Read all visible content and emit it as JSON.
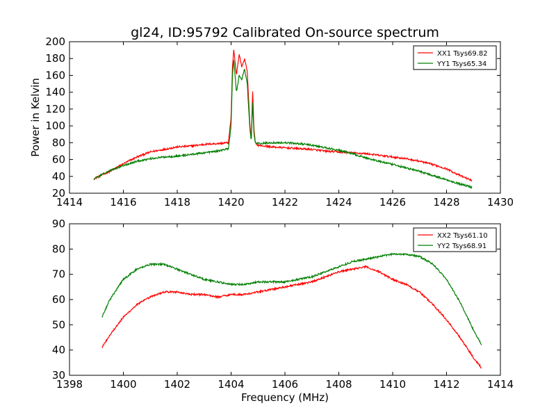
{
  "figure": {
    "title": "gl24, ID:95792 Calibrated On-source spectrum",
    "xlabel": "Frequency (MHz)",
    "colors": {
      "red": "#ff0000",
      "green": "#007f00"
    }
  },
  "chart_data": [
    {
      "type": "line",
      "title": "gl24, ID:95792 Calibrated On-source spectrum",
      "xlabel": "",
      "ylabel": "Power in Kelvin",
      "xlim": [
        1414,
        1430
      ],
      "ylim": [
        20,
        200
      ],
      "xticks": [
        1414,
        1416,
        1418,
        1420,
        1422,
        1424,
        1426,
        1428,
        1430
      ],
      "yticks": [
        20,
        40,
        60,
        80,
        100,
        120,
        140,
        160,
        180,
        200
      ],
      "legend": "top-right",
      "grid": false,
      "series": [
        {
          "name": "XX1 Tsys69.82",
          "color": "#ff0000",
          "x": [
            1414.9,
            1415.5,
            1416.0,
            1416.5,
            1417.0,
            1417.5,
            1418.0,
            1418.5,
            1419.0,
            1419.5,
            1419.9,
            1420.0,
            1420.05,
            1420.1,
            1420.2,
            1420.3,
            1420.4,
            1420.5,
            1420.6,
            1420.7,
            1420.75,
            1420.8,
            1420.85,
            1420.9,
            1421.0,
            1421.5,
            1422.0,
            1422.5,
            1423.0,
            1423.5,
            1424.0,
            1424.5,
            1425.0,
            1425.5,
            1426.0,
            1426.5,
            1427.0,
            1427.5,
            1428.0,
            1428.5,
            1428.95
          ],
          "y": [
            37,
            46,
            55,
            63,
            69,
            72,
            75,
            76,
            78,
            79,
            80,
            110,
            170,
            190,
            160,
            185,
            170,
            180,
            165,
            100,
            85,
            143,
            95,
            80,
            77,
            75,
            74,
            73,
            72,
            70,
            69,
            68,
            67,
            65,
            63,
            61,
            58,
            54,
            49,
            41,
            35
          ]
        },
        {
          "name": "YY1 Tsys65.34",
          "color": "#007f00",
          "x": [
            1414.9,
            1415.5,
            1416.0,
            1416.5,
            1417.0,
            1417.5,
            1418.0,
            1418.5,
            1419.0,
            1419.5,
            1419.9,
            1420.0,
            1420.05,
            1420.1,
            1420.2,
            1420.3,
            1420.4,
            1420.5,
            1420.6,
            1420.7,
            1420.75,
            1420.8,
            1420.85,
            1420.9,
            1421.0,
            1421.5,
            1422.0,
            1422.5,
            1423.0,
            1423.5,
            1424.0,
            1424.5,
            1425.0,
            1425.5,
            1426.0,
            1426.5,
            1427.0,
            1427.5,
            1428.0,
            1428.5,
            1428.95
          ],
          "y": [
            37,
            47,
            53,
            58,
            61,
            63,
            64,
            66,
            68,
            70,
            73,
            100,
            160,
            178,
            140,
            160,
            155,
            168,
            150,
            95,
            82,
            128,
            90,
            80,
            79,
            80,
            80,
            79,
            77,
            74,
            71,
            67,
            62,
            58,
            54,
            50,
            46,
            41,
            36,
            31,
            27
          ]
        }
      ]
    },
    {
      "type": "line",
      "title": "",
      "xlabel": "Frequency (MHz)",
      "ylabel": "",
      "xlim": [
        1398,
        1414
      ],
      "ylim": [
        30,
        90
      ],
      "xticks": [
        1398,
        1400,
        1402,
        1404,
        1406,
        1408,
        1410,
        1412,
        1414
      ],
      "yticks": [
        30,
        40,
        50,
        60,
        70,
        80,
        90
      ],
      "legend": "top-right",
      "grid": false,
      "series": [
        {
          "name": "XX2 Tsys61.10",
          "color": "#ff0000",
          "x": [
            1399.2,
            1399.5,
            1400.0,
            1400.5,
            1401.0,
            1401.5,
            1402.0,
            1402.5,
            1403.0,
            1403.5,
            1404.0,
            1404.5,
            1405.0,
            1405.5,
            1406.0,
            1406.5,
            1407.0,
            1407.5,
            1408.0,
            1408.5,
            1409.0,
            1409.5,
            1410.0,
            1410.5,
            1411.0,
            1411.5,
            1412.0,
            1412.5,
            1413.0,
            1413.3
          ],
          "y": [
            41,
            46,
            53,
            58,
            61,
            63,
            63,
            62,
            62,
            61,
            62,
            62,
            63,
            64,
            65,
            66,
            67,
            69,
            71,
            72,
            73,
            71,
            68,
            66,
            63,
            58,
            52,
            45,
            37,
            33
          ]
        },
        {
          "name": "YY2 Tsys68.91",
          "color": "#007f00",
          "x": [
            1399.2,
            1399.5,
            1400.0,
            1400.5,
            1401.0,
            1401.5,
            1402.0,
            1402.5,
            1403.0,
            1403.5,
            1404.0,
            1404.5,
            1405.0,
            1405.5,
            1406.0,
            1406.5,
            1407.0,
            1407.5,
            1408.0,
            1408.5,
            1409.0,
            1409.5,
            1410.0,
            1410.5,
            1411.0,
            1411.5,
            1412.0,
            1412.5,
            1413.0,
            1413.3
          ],
          "y": [
            53,
            60,
            68,
            72,
            74,
            74,
            72,
            70,
            68,
            67,
            66,
            66,
            67,
            67,
            67,
            68,
            69,
            71,
            73,
            75,
            76,
            77,
            78,
            78,
            77,
            74,
            68,
            59,
            48,
            42
          ]
        }
      ]
    }
  ]
}
